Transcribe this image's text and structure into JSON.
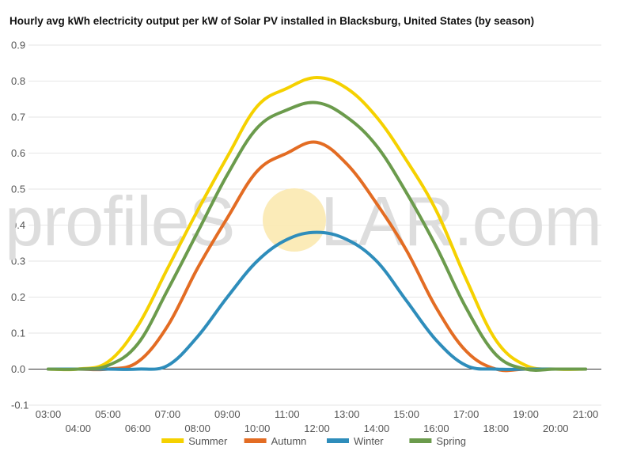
{
  "watermark": {
    "lead": "profileS",
    "tail": "LAR.com",
    "sun_color": "#fbe9b0"
  },
  "chart_data": {
    "type": "line",
    "title": "Hourly avg kWh electricity output per kW of Solar PV installed in Blacksburg, United States (by season)",
    "xlabel": "",
    "ylabel": "",
    "ylim": [
      -0.1,
      0.9
    ],
    "y_ticks": [
      "-0.1",
      "0.0",
      "0.1",
      "0.2",
      "0.3",
      "0.4",
      "0.5",
      "0.6",
      "0.7",
      "0.8",
      "0.9"
    ],
    "grid": true,
    "legend_position": "bottom",
    "categories": [
      "03:00",
      "04:00",
      "05:00",
      "06:00",
      "07:00",
      "08:00",
      "09:00",
      "10:00",
      "11:00",
      "12:00",
      "13:00",
      "14:00",
      "15:00",
      "16:00",
      "17:00",
      "18:00",
      "19:00",
      "20:00",
      "21:00"
    ],
    "series": [
      {
        "name": "Summer",
        "color": "#f5d100",
        "values": [
          0,
          0,
          0.02,
          0.12,
          0.28,
          0.44,
          0.59,
          0.73,
          0.78,
          0.81,
          0.78,
          0.7,
          0.58,
          0.44,
          0.25,
          0.08,
          0.01,
          0,
          0
        ]
      },
      {
        "name": "Autumn",
        "color": "#e36c23",
        "values": [
          0,
          0,
          0,
          0.02,
          0.12,
          0.28,
          0.42,
          0.55,
          0.6,
          0.63,
          0.57,
          0.46,
          0.33,
          0.17,
          0.05,
          0,
          0,
          0,
          0
        ]
      },
      {
        "name": "Winter",
        "color": "#2e8dbb",
        "values": [
          0,
          0,
          0,
          0,
          0.01,
          0.09,
          0.2,
          0.3,
          0.36,
          0.38,
          0.36,
          0.3,
          0.19,
          0.08,
          0.01,
          0,
          0,
          0,
          0
        ]
      },
      {
        "name": "Spring",
        "color": "#6b9b4c",
        "values": [
          0,
          0,
          0.01,
          0.07,
          0.22,
          0.38,
          0.54,
          0.67,
          0.72,
          0.74,
          0.7,
          0.62,
          0.49,
          0.34,
          0.17,
          0.04,
          0,
          0,
          0
        ]
      }
    ]
  }
}
